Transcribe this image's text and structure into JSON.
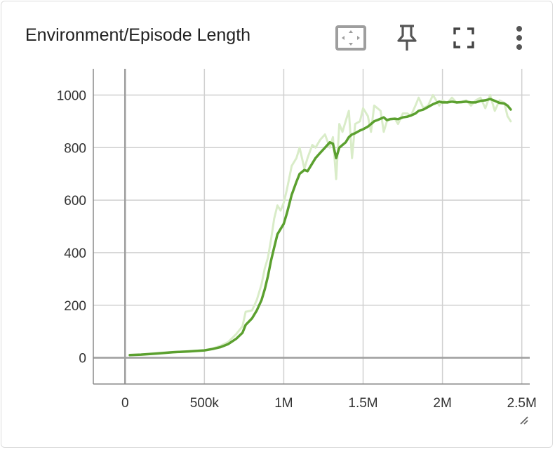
{
  "card": {
    "title": "Environment/Episode Length",
    "tools": [
      {
        "name": "fit-domain-icon"
      },
      {
        "name": "pin-icon"
      },
      {
        "name": "fullscreen-icon"
      },
      {
        "name": "more-vert-icon"
      }
    ]
  },
  "colors": {
    "smoothed": "#5ba02f",
    "raw": "#d9ecc8",
    "grid": "#d0d0d0",
    "axis": "#9e9e9e"
  },
  "chart_data": {
    "type": "line",
    "title": "Environment/Episode Length",
    "xlabel": "",
    "ylabel": "",
    "xlim": [
      -200000,
      2550000
    ],
    "ylim": [
      -100,
      1100
    ],
    "x_ticks": [
      0,
      500000,
      1000000,
      1500000,
      2000000,
      2500000
    ],
    "x_tick_labels": [
      "0",
      "500k",
      "1M",
      "1.5M",
      "2M",
      "2.5M"
    ],
    "y_ticks": [
      0,
      200,
      400,
      600,
      800,
      1000
    ],
    "y_tick_labels": [
      "0",
      "200",
      "400",
      "600",
      "800",
      "1000"
    ],
    "grid": true,
    "series": [
      {
        "style": "raw",
        "x": [
          30000,
          100000,
          200000,
          300000,
          400000,
          500000,
          550000,
          600000,
          650000,
          700000,
          740000,
          760000,
          800000,
          830000,
          860000,
          880000,
          900000,
          920000,
          940000,
          960000,
          980000,
          1000000,
          1020000,
          1050000,
          1080000,
          1100000,
          1130000,
          1150000,
          1180000,
          1200000,
          1230000,
          1260000,
          1290000,
          1310000,
          1330000,
          1350000,
          1370000,
          1390000,
          1410000,
          1430000,
          1450000,
          1480000,
          1500000,
          1530000,
          1550000,
          1570000,
          1590000,
          1610000,
          1630000,
          1650000,
          1670000,
          1700000,
          1720000,
          1750000,
          1780000,
          1800000,
          1830000,
          1850000,
          1880000,
          1910000,
          1940000,
          1960000,
          1980000,
          2000000,
          2030000,
          2060000,
          2090000,
          2120000,
          2150000,
          2180000,
          2210000,
          2240000,
          2270000,
          2300000,
          2330000,
          2360000,
          2390000,
          2410000,
          2430000
        ],
        "values": [
          10,
          12,
          18,
          22,
          25,
          28,
          35,
          45,
          60,
          90,
          120,
          175,
          180,
          220,
          280,
          340,
          380,
          450,
          530,
          580,
          560,
          590,
          640,
          730,
          760,
          800,
          720,
          760,
          810,
          800,
          830,
          850,
          800,
          840,
          680,
          890,
          860,
          900,
          940,
          760,
          890,
          900,
          950,
          920,
          860,
          960,
          950,
          940,
          860,
          900,
          910,
          910,
          890,
          930,
          930,
          920,
          960,
          990,
          950,
          960,
          1000,
          980,
          960,
          980,
          970,
          990,
          970,
          975,
          980,
          960,
          980,
          990,
          950,
          1000,
          940,
          980,
          970,
          920,
          900
        ]
      },
      {
        "style": "smoothed",
        "x": [
          30000,
          100000,
          200000,
          300000,
          400000,
          500000,
          550000,
          600000,
          650000,
          700000,
          740000,
          760000,
          800000,
          830000,
          860000,
          880000,
          900000,
          920000,
          940000,
          960000,
          980000,
          1000000,
          1020000,
          1050000,
          1080000,
          1100000,
          1130000,
          1150000,
          1180000,
          1200000,
          1230000,
          1260000,
          1290000,
          1310000,
          1330000,
          1350000,
          1370000,
          1390000,
          1410000,
          1430000,
          1450000,
          1480000,
          1500000,
          1530000,
          1550000,
          1570000,
          1590000,
          1610000,
          1630000,
          1650000,
          1670000,
          1700000,
          1720000,
          1750000,
          1780000,
          1800000,
          1830000,
          1850000,
          1880000,
          1910000,
          1940000,
          1960000,
          1980000,
          2000000,
          2030000,
          2060000,
          2090000,
          2120000,
          2150000,
          2180000,
          2210000,
          2240000,
          2270000,
          2300000,
          2330000,
          2360000,
          2390000,
          2410000,
          2430000
        ],
        "values": [
          10,
          12,
          16,
          21,
          24,
          28,
          33,
          40,
          52,
          72,
          95,
          125,
          150,
          180,
          220,
          260,
          310,
          370,
          420,
          470,
          490,
          510,
          550,
          620,
          670,
          700,
          715,
          710,
          740,
          760,
          780,
          800,
          820,
          815,
          760,
          800,
          810,
          820,
          840,
          850,
          855,
          865,
          870,
          880,
          890,
          900,
          905,
          910,
          915,
          905,
          908,
          910,
          908,
          915,
          918,
          922,
          930,
          940,
          945,
          955,
          965,
          970,
          975,
          972,
          972,
          975,
          972,
          973,
          975,
          972,
          972,
          978,
          980,
          985,
          978,
          970,
          968,
          960,
          945
        ]
      }
    ]
  }
}
